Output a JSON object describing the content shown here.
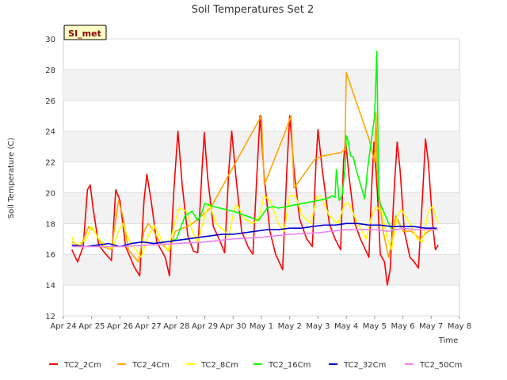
{
  "chart_data": {
    "type": "line",
    "title": "Soil Temperatures Set 2",
    "xlabel": "Time",
    "ylabel": "Soil Temperature (C)",
    "site_label": "SI_met",
    "x_ticks": [
      "Apr 24",
      "Apr 25",
      "Apr 26",
      "Apr 27",
      "Apr 28",
      "Apr 29",
      "Apr 30",
      "May 1",
      "May 2",
      "May 3",
      "May 4",
      "May 5",
      "May 6",
      "May 7",
      "May 8"
    ],
    "x_range_days": [
      0,
      14
    ],
    "ylim": [
      12,
      30
    ],
    "y_ticks": [
      12,
      14,
      16,
      18,
      20,
      22,
      24,
      26,
      28,
      30
    ],
    "grid": true,
    "legend_position": "bottom",
    "series": [
      {
        "name": "TC2_2Cm",
        "color": "#ff0000",
        "points": [
          [
            0.3,
            16.3
          ],
          [
            0.5,
            15.5
          ],
          [
            0.7,
            16.5
          ],
          [
            0.85,
            20.2
          ],
          [
            0.95,
            20.5
          ],
          [
            1.05,
            19.0
          ],
          [
            1.25,
            16.6
          ],
          [
            1.5,
            16.0
          ],
          [
            1.7,
            15.6
          ],
          [
            1.85,
            20.2
          ],
          [
            2.0,
            19.5
          ],
          [
            2.2,
            16.5
          ],
          [
            2.5,
            15.2
          ],
          [
            2.7,
            14.6
          ],
          [
            2.85,
            19.5
          ],
          [
            2.95,
            21.2
          ],
          [
            3.1,
            19.5
          ],
          [
            3.3,
            16.8
          ],
          [
            3.6,
            15.8
          ],
          [
            3.75,
            14.6
          ],
          [
            3.9,
            20.0
          ],
          [
            4.05,
            24.0
          ],
          [
            4.2,
            20.5
          ],
          [
            4.4,
            17.2
          ],
          [
            4.6,
            16.2
          ],
          [
            4.75,
            16.1
          ],
          [
            4.9,
            21.5
          ],
          [
            4.98,
            23.9
          ],
          [
            5.1,
            21.0
          ],
          [
            5.3,
            17.8
          ],
          [
            5.55,
            16.8
          ],
          [
            5.7,
            16.1
          ],
          [
            5.85,
            21.5
          ],
          [
            5.95,
            24.0
          ],
          [
            6.1,
            21.0
          ],
          [
            6.3,
            17.5
          ],
          [
            6.55,
            16.4
          ],
          [
            6.7,
            16.0
          ],
          [
            6.85,
            21.5
          ],
          [
            6.95,
            25.0
          ],
          [
            7.1,
            21.0
          ],
          [
            7.3,
            17.5
          ],
          [
            7.5,
            16.0
          ],
          [
            7.75,
            15.0
          ],
          [
            7.9,
            21.5
          ],
          [
            8.0,
            25.0
          ],
          [
            8.15,
            21.5
          ],
          [
            8.35,
            18.3
          ],
          [
            8.6,
            17.0
          ],
          [
            8.8,
            16.5
          ],
          [
            8.93,
            22.0
          ],
          [
            9.0,
            24.1
          ],
          [
            9.15,
            21.5
          ],
          [
            9.4,
            18.0
          ],
          [
            9.6,
            17.0
          ],
          [
            9.8,
            16.3
          ],
          [
            9.9,
            22.0
          ],
          [
            9.97,
            23.5
          ],
          [
            10.1,
            21.0
          ],
          [
            10.3,
            18.0
          ],
          [
            10.5,
            17.0
          ],
          [
            10.7,
            16.2
          ],
          [
            10.8,
            15.8
          ],
          [
            10.9,
            20.5
          ],
          [
            10.98,
            23.3
          ],
          [
            11.1,
            20.0
          ],
          [
            11.2,
            16.0
          ],
          [
            11.35,
            15.5
          ],
          [
            11.45,
            14.0
          ],
          [
            11.55,
            15.0
          ],
          [
            11.7,
            20.5
          ],
          [
            11.8,
            23.3
          ],
          [
            11.9,
            21.5
          ],
          [
            12.05,
            17.5
          ],
          [
            12.25,
            15.8
          ],
          [
            12.4,
            15.5
          ],
          [
            12.55,
            15.1
          ],
          [
            12.7,
            20.0
          ],
          [
            12.8,
            23.5
          ],
          [
            12.9,
            22.0
          ],
          [
            13.05,
            18.0
          ],
          [
            13.15,
            16.3
          ],
          [
            13.25,
            16.6
          ]
        ]
      },
      {
        "name": "TC2_4Cm",
        "color": "#ffa500",
        "points": [
          [
            0.3,
            16.8
          ],
          [
            0.6,
            16.5
          ],
          [
            0.9,
            17.8
          ],
          [
            1.1,
            17.5
          ],
          [
            1.4,
            16.5
          ],
          [
            1.7,
            16.3
          ],
          [
            1.95,
            19.5
          ],
          [
            2.1,
            18.5
          ],
          [
            2.3,
            16.3
          ],
          [
            2.65,
            15.5
          ],
          [
            2.85,
            17.5
          ],
          [
            3.0,
            18.0
          ],
          [
            3.2,
            17.5
          ],
          [
            3.4,
            16.8
          ],
          [
            3.75,
            16.2
          ],
          [
            3.95,
            17.5
          ],
          [
            4.5,
            17.9
          ],
          [
            5.2,
            19.0
          ],
          [
            7.0,
            25.0
          ],
          [
            7.1,
            20.5
          ],
          [
            7.85,
            24.0
          ],
          [
            8.05,
            25.0
          ],
          [
            8.15,
            20.3
          ],
          [
            8.9,
            22.2
          ],
          [
            9.2,
            22.4
          ],
          [
            9.8,
            22.6
          ],
          [
            9.95,
            22.8
          ],
          [
            10.0,
            27.8
          ],
          [
            10.8,
            23.5
          ],
          [
            11.0,
            22.0
          ],
          [
            11.05,
            25.2
          ],
          [
            11.1,
            21.0
          ],
          [
            11.3,
            17.5
          ],
          [
            11.5,
            15.8
          ],
          [
            11.75,
            18.5
          ],
          [
            12.0,
            17.5
          ],
          [
            12.3,
            17.5
          ],
          [
            12.6,
            17.0
          ],
          [
            12.9,
            17.5
          ],
          [
            13.2,
            17.7
          ]
        ]
      },
      {
        "name": "TC2_8Cm",
        "color": "#ffff00",
        "points": [
          [
            0.3,
            17.1
          ],
          [
            0.45,
            16.5
          ],
          [
            0.8,
            17.0
          ],
          [
            1.0,
            17.8
          ],
          [
            1.25,
            17.0
          ],
          [
            1.5,
            16.5
          ],
          [
            1.75,
            16.4
          ],
          [
            1.95,
            17.5
          ],
          [
            2.1,
            18.0
          ],
          [
            2.35,
            16.8
          ],
          [
            2.6,
            16.2
          ],
          [
            2.75,
            15.8
          ],
          [
            3.0,
            17.2
          ],
          [
            3.2,
            17.9
          ],
          [
            3.45,
            17.0
          ],
          [
            3.7,
            16.2
          ],
          [
            3.9,
            17.8
          ],
          [
            4.1,
            19.0
          ],
          [
            4.35,
            18.8
          ],
          [
            4.6,
            17.3
          ],
          [
            4.75,
            16.8
          ],
          [
            5.0,
            18.5
          ],
          [
            5.15,
            19.3
          ],
          [
            5.4,
            18.0
          ],
          [
            5.7,
            17.5
          ],
          [
            5.85,
            17.2
          ],
          [
            6.05,
            19.0
          ],
          [
            6.15,
            19.2
          ],
          [
            6.4,
            18.3
          ],
          [
            6.7,
            18.0
          ],
          [
            6.9,
            18.3
          ],
          [
            7.1,
            19.8
          ],
          [
            7.3,
            19.5
          ],
          [
            7.6,
            18.0
          ],
          [
            7.8,
            17.5
          ],
          [
            8.0,
            19.8
          ],
          [
            8.2,
            19.8
          ],
          [
            8.45,
            18.5
          ],
          [
            8.75,
            18.0
          ],
          [
            8.95,
            19.7
          ],
          [
            9.1,
            19.8
          ],
          [
            9.4,
            18.5
          ],
          [
            9.7,
            18.0
          ],
          [
            9.95,
            19.3
          ],
          [
            10.1,
            19.3
          ],
          [
            10.4,
            18.0
          ],
          [
            10.7,
            17.0
          ],
          [
            10.9,
            18.5
          ],
          [
            11.05,
            19.1
          ],
          [
            11.25,
            18.8
          ],
          [
            11.45,
            17.0
          ],
          [
            11.6,
            16.3
          ],
          [
            11.8,
            18.5
          ],
          [
            11.95,
            18.9
          ],
          [
            12.25,
            18.0
          ],
          [
            12.5,
            17.0
          ],
          [
            12.7,
            16.8
          ],
          [
            12.9,
            18.8
          ],
          [
            13.05,
            19.1
          ],
          [
            13.25,
            18.0
          ]
        ]
      },
      {
        "name": "TC2_16Cm",
        "color": "#00ff00",
        "points": [
          [
            3.75,
            16.8
          ],
          [
            4.0,
            17.0
          ],
          [
            4.3,
            18.5
          ],
          [
            4.55,
            18.8
          ],
          [
            4.75,
            18.2
          ],
          [
            4.85,
            18.5
          ],
          [
            5.0,
            19.3
          ],
          [
            5.3,
            19.1
          ],
          [
            6.0,
            18.8
          ],
          [
            6.9,
            18.2
          ],
          [
            7.2,
            19.0
          ],
          [
            7.4,
            19.1
          ],
          [
            7.6,
            19.0
          ],
          [
            9.3,
            19.6
          ],
          [
            9.5,
            19.8
          ],
          [
            9.6,
            19.7
          ],
          [
            9.65,
            21.5
          ],
          [
            9.75,
            19.5
          ],
          [
            9.85,
            19.8
          ],
          [
            9.95,
            21.5
          ],
          [
            10.0,
            23.7
          ],
          [
            10.05,
            23.5
          ],
          [
            10.15,
            22.4
          ],
          [
            10.25,
            22.3
          ],
          [
            10.35,
            21.5
          ],
          [
            10.65,
            19.6
          ],
          [
            10.75,
            21.5
          ],
          [
            11.0,
            25.0
          ],
          [
            11.08,
            29.2
          ],
          [
            11.15,
            19.5
          ],
          [
            11.5,
            18.0
          ],
          [
            11.65,
            17.5
          ]
        ]
      },
      {
        "name": "TC2_32Cm",
        "color": "#0000cd",
        "points": [
          [
            0.3,
            16.6
          ],
          [
            0.8,
            16.5
          ],
          [
            1.2,
            16.6
          ],
          [
            1.6,
            16.7
          ],
          [
            2.0,
            16.5
          ],
          [
            2.4,
            16.7
          ],
          [
            2.8,
            16.8
          ],
          [
            3.2,
            16.7
          ],
          [
            3.6,
            16.8
          ],
          [
            4.0,
            16.9
          ],
          [
            4.4,
            17.0
          ],
          [
            4.8,
            17.1
          ],
          [
            5.2,
            17.2
          ],
          [
            5.6,
            17.3
          ],
          [
            6.0,
            17.3
          ],
          [
            6.4,
            17.4
          ],
          [
            6.8,
            17.5
          ],
          [
            7.2,
            17.6
          ],
          [
            7.6,
            17.6
          ],
          [
            8.0,
            17.7
          ],
          [
            8.4,
            17.7
          ],
          [
            8.8,
            17.8
          ],
          [
            9.2,
            17.9
          ],
          [
            9.6,
            17.9
          ],
          [
            10.0,
            18.0
          ],
          [
            10.4,
            18.0
          ],
          [
            10.8,
            17.9
          ],
          [
            11.2,
            17.9
          ],
          [
            11.6,
            17.8
          ],
          [
            12.0,
            17.8
          ],
          [
            12.4,
            17.8
          ],
          [
            12.8,
            17.7
          ],
          [
            13.2,
            17.7
          ]
        ]
      },
      {
        "name": "TC2_50Cm",
        "color": "#ee82ee",
        "points": [
          [
            0.3,
            16.5
          ],
          [
            1.0,
            16.5
          ],
          [
            2.0,
            16.5
          ],
          [
            3.0,
            16.6
          ],
          [
            4.0,
            16.7
          ],
          [
            5.0,
            16.8
          ],
          [
            6.0,
            17.0
          ],
          [
            7.0,
            17.1
          ],
          [
            8.0,
            17.3
          ],
          [
            9.0,
            17.4
          ],
          [
            10.0,
            17.6
          ],
          [
            11.0,
            17.6
          ],
          [
            11.5,
            17.5
          ],
          [
            12.0,
            17.7
          ],
          [
            12.5,
            17.6
          ],
          [
            13.0,
            17.6
          ],
          [
            13.25,
            17.6
          ]
        ]
      }
    ]
  }
}
